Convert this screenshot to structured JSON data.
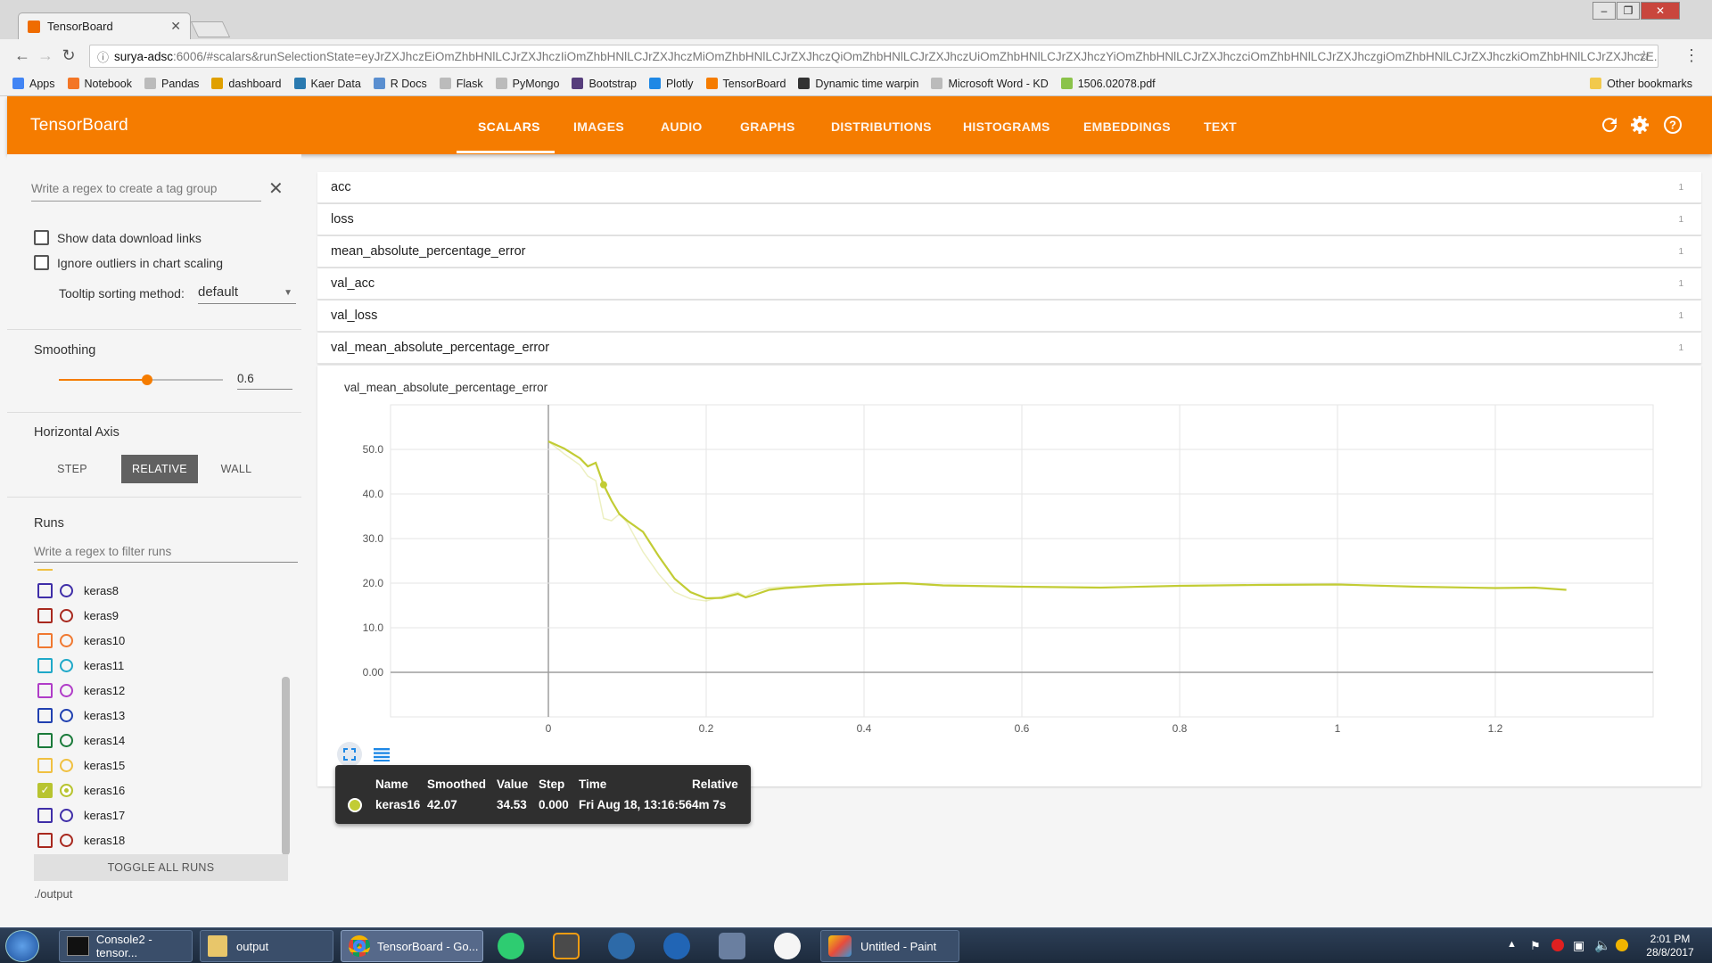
{
  "browser": {
    "tab_title": "TensorBoard",
    "tab_close": "✕",
    "url_host": "surya-adsc",
    "url_path": ":6006/#scalars&runSelectionState=eyJrZXJhczEiOmZhbHNlLCJrZXJhczIiOmZhbHNlLCJrZXJhczMiOmZhbHNlLCJrZXJhczQiOmZhbHNlLCJrZXJhczUiOmZhbHNlLCJrZXJhczYiOmZhbHNlLCJrZXJhczciOmZhbHNlLCJrZXJhczgiOmZhbHNlLCJrZXJhczkiOmZhbHNlLCJrZXJhczE...",
    "bookmarks": [
      {
        "label": "Apps",
        "color": "#4285f4"
      },
      {
        "label": "Notebook",
        "color": "#f37626"
      },
      {
        "label": "Pandas",
        "color": "#bbbbbb"
      },
      {
        "label": "dashboard",
        "color": "#e0a000"
      },
      {
        "label": "Kaer Data",
        "color": "#2a7ab0"
      },
      {
        "label": "R Docs",
        "color": "#5a8fd0"
      },
      {
        "label": "Flask",
        "color": "#bbbbbb"
      },
      {
        "label": "PyMongo",
        "color": "#bbbbbb"
      },
      {
        "label": "Bootstrap",
        "color": "#563d7c"
      },
      {
        "label": "Plotly",
        "color": "#1e88e5"
      },
      {
        "label": "TensorBoard",
        "color": "#f57c00"
      },
      {
        "label": "Dynamic time warpin",
        "color": "#333333"
      },
      {
        "label": "Microsoft Word - KD",
        "color": "#bbbbbb"
      },
      {
        "label": "1506.02078.pdf",
        "color": "#8bc34a"
      }
    ],
    "other_bookmarks": "Other bookmarks"
  },
  "header": {
    "title": "TensorBoard",
    "tabs": [
      "SCALARS",
      "IMAGES",
      "AUDIO",
      "GRAPHS",
      "DISTRIBUTIONS",
      "HISTOGRAMS",
      "EMBEDDINGS",
      "TEXT"
    ],
    "active_tab": "SCALARS"
  },
  "sidebar": {
    "tag_group_placeholder": "Write a regex to create a tag group",
    "show_download_links": "Show data download links",
    "ignore_outliers": "Ignore outliers in chart scaling",
    "tooltip_sorting_label": "Tooltip sorting method:",
    "tooltip_sorting_value": "default",
    "smoothing_label": "Smoothing",
    "smoothing_value": "0.6",
    "smoothing_fraction": 0.6,
    "horizontal_axis_label": "Horizontal Axis",
    "axis_options": [
      "STEP",
      "RELATIVE",
      "WALL"
    ],
    "axis_selected": "RELATIVE",
    "runs_label": "Runs",
    "runs_filter_placeholder": "Write a regex to filter runs",
    "runs": [
      {
        "name": "keras8",
        "color": "#3f2ea8",
        "checked": false
      },
      {
        "name": "keras9",
        "color": "#a8281e",
        "checked": false
      },
      {
        "name": "keras10",
        "color": "#f07830",
        "checked": false
      },
      {
        "name": "keras11",
        "color": "#1ea8c8",
        "checked": false
      },
      {
        "name": "keras12",
        "color": "#b03cc8",
        "checked": false
      },
      {
        "name": "keras13",
        "color": "#2040b0",
        "checked": false
      },
      {
        "name": "keras14",
        "color": "#1a7a3a",
        "checked": false
      },
      {
        "name": "keras15",
        "color": "#f0c040",
        "checked": false
      },
      {
        "name": "keras16",
        "color": "#b8c430",
        "checked": true
      },
      {
        "name": "keras17",
        "color": "#3f2ea8",
        "checked": false
      },
      {
        "name": "keras18",
        "color": "#a8281e",
        "checked": false
      }
    ],
    "toggle_all": "TOGGLE ALL RUNS",
    "logdir": "./output"
  },
  "tags": [
    {
      "name": "acc",
      "count": "1"
    },
    {
      "name": "loss",
      "count": "1"
    },
    {
      "name": "mean_absolute_percentage_error",
      "count": "1"
    },
    {
      "name": "val_acc",
      "count": "1"
    },
    {
      "name": "val_loss",
      "count": "1"
    },
    {
      "name": "val_mean_absolute_percentage_error",
      "count": "1"
    }
  ],
  "chart_data": {
    "type": "line",
    "title": "val_mean_absolute_percentage_error",
    "xlabel": "",
    "ylabel": "",
    "xlim": [
      -0.2,
      1.4
    ],
    "ylim": [
      -10,
      60
    ],
    "x_ticks": [
      "0",
      "0.2",
      "0.4",
      "0.6",
      "0.8",
      "1",
      "1.2"
    ],
    "x_tick_values": [
      0,
      0.2,
      0.4,
      0.6,
      0.8,
      1.0,
      1.2
    ],
    "y_ticks": [
      "0.00",
      "10.0",
      "20.0",
      "30.0",
      "40.0",
      "50.0"
    ],
    "y_tick_values": [
      0,
      10,
      20,
      30,
      40,
      50
    ],
    "grid": true,
    "series": [
      {
        "name": "keras16",
        "color": "#c2cc34",
        "x": [
          0,
          0.02,
          0.04,
          0.05,
          0.06,
          0.07,
          0.08,
          0.09,
          0.1,
          0.12,
          0.14,
          0.16,
          0.18,
          0.2,
          0.22,
          0.24,
          0.25,
          0.26,
          0.28,
          0.3,
          0.35,
          0.4,
          0.45,
          0.5,
          0.6,
          0.7,
          0.8,
          0.9,
          1.0,
          1.1,
          1.2,
          1.25,
          1.29
        ],
        "smoothed": [
          51.8,
          50.2,
          48.0,
          46.2,
          47.0,
          42.07,
          38.5,
          35.5,
          34.0,
          31.5,
          26.0,
          21.0,
          18.0,
          16.6,
          16.7,
          17.6,
          16.8,
          17.3,
          18.5,
          18.9,
          19.5,
          19.8,
          20.0,
          19.5,
          19.2,
          19.0,
          19.4,
          19.6,
          19.7,
          19.2,
          18.9,
          19.0,
          18.5
        ],
        "raw": [
          51.8,
          49.0,
          46.5,
          44.0,
          43.0,
          34.53,
          34.0,
          35.5,
          33.5,
          27.0,
          22.0,
          18.0,
          16.5,
          16.0,
          17.0,
          18.0,
          17.0,
          18.0,
          19.0,
          19.2,
          19.6,
          19.9,
          20.0,
          19.4,
          19.2,
          19.0,
          19.4,
          19.6,
          19.7,
          19.2,
          18.9,
          19.0,
          18.5
        ]
      }
    ]
  },
  "tooltip": {
    "headers": [
      "Name",
      "Smoothed",
      "Value",
      "Step",
      "Time",
      "Relative"
    ],
    "row": {
      "name": "keras16",
      "smoothed": "42.07",
      "value": "34.53",
      "step": "0.000",
      "time": "Fri Aug 18, 13:16:56",
      "relative": "4m 7s"
    },
    "color": "#c2cc34"
  },
  "taskbar": {
    "items": [
      "Console2 - tensor...",
      "output",
      "TensorBoard - Go...",
      "Untitled - Paint"
    ],
    "clock_time": "2:01 PM",
    "clock_date": "28/8/2017"
  }
}
